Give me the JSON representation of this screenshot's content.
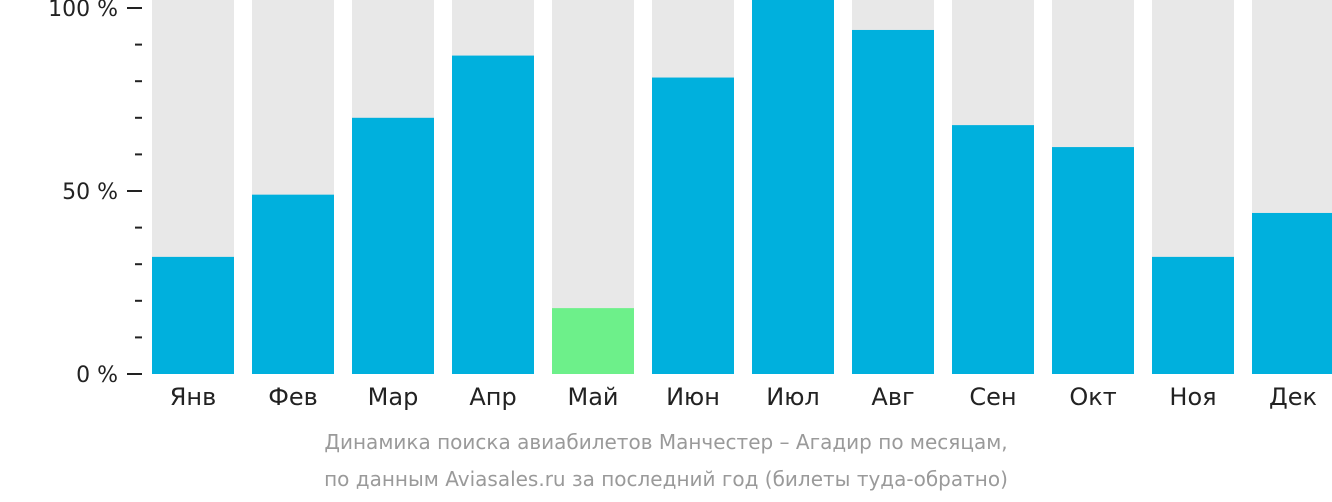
{
  "chart_data": {
    "type": "bar",
    "categories": [
      "Янв",
      "Фев",
      "Мар",
      "Апр",
      "Май",
      "Июн",
      "Июл",
      "Авг",
      "Сен",
      "Окт",
      "Ноя",
      "Дек"
    ],
    "values": [
      32,
      49,
      70,
      87,
      18,
      81,
      103,
      94,
      68,
      62,
      32,
      44
    ],
    "highlight_index": 4,
    "ylim": [
      0,
      100
    ],
    "y_ticks": [
      {
        "value": 100,
        "label": "100 %"
      },
      {
        "value": 50,
        "label": "50 %"
      },
      {
        "value": 0,
        "label": "0 %"
      }
    ],
    "minor_tick_step": 10,
    "colors": {
      "bar": "#00b0dd",
      "highlight": "#6df08a",
      "background_bar": "#e8e8e8",
      "axis": "#222222"
    }
  },
  "caption": {
    "line1": "Динамика поиска авиабилетов Манчестер – Агадир по месяцам,",
    "line2": "по данным Aviasales.ru за последний год (билеты туда-обратно)"
  }
}
